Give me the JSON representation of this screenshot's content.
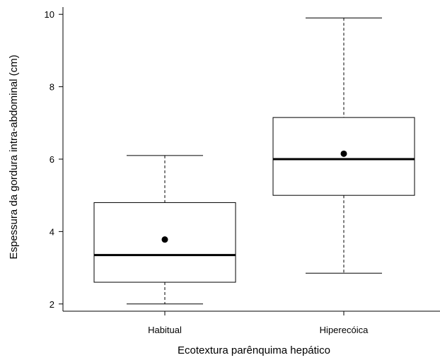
{
  "chart_data": {
    "type": "boxplot",
    "title": "",
    "xlabel": "Ecotextura parênquima hepático",
    "ylabel": "Espessura da gordura intra-abdominal (cm)",
    "ylim": [
      1.8,
      10.2
    ],
    "yticks": [
      2,
      4,
      6,
      8,
      10
    ],
    "grid": false,
    "legend": "none",
    "categories": [
      "Habitual",
      "Hiperecóica"
    ],
    "boxes": [
      {
        "category": "Habitual",
        "min": 2.0,
        "q1": 2.6,
        "median": 3.35,
        "q3": 4.8,
        "max": 6.1,
        "mean": 3.78
      },
      {
        "category": "Hiperecóica",
        "min": 2.85,
        "q1": 5.0,
        "median": 6.0,
        "q3": 7.15,
        "max": 9.9,
        "mean": 6.15
      }
    ],
    "colors": {
      "stroke": "#000000",
      "fill": "#ffffff"
    }
  }
}
